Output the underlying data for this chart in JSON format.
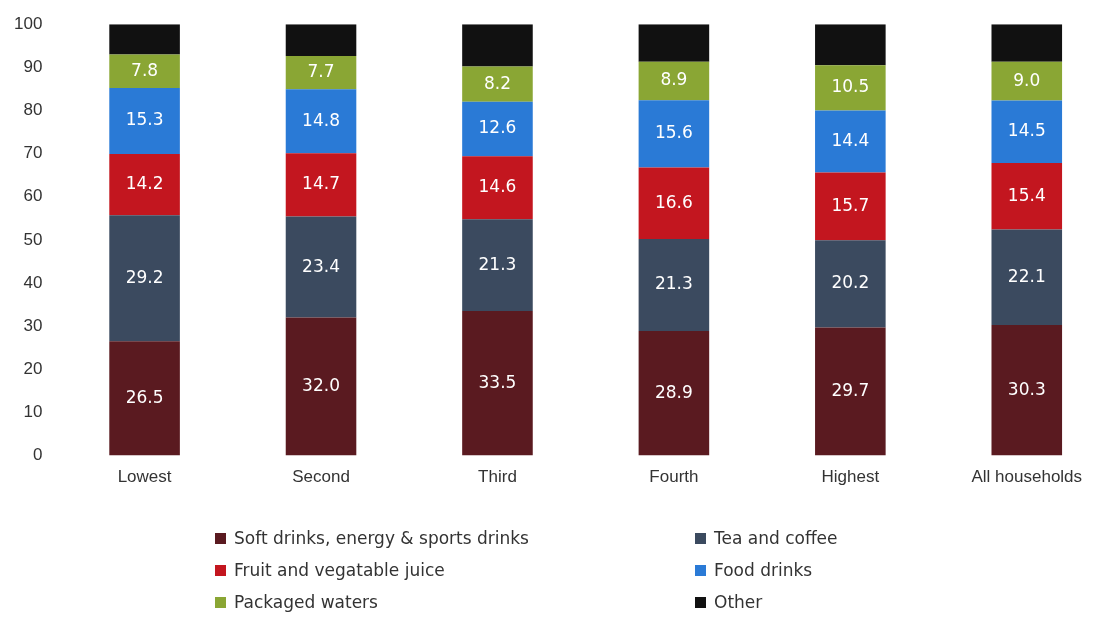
{
  "chart_data": {
    "type": "bar",
    "stacked": true,
    "categories": [
      "Lowest",
      "Second",
      "Third",
      "Fourth",
      "Highest",
      "All households"
    ],
    "series": [
      {
        "name": "Soft drinks, energy & sports drinks",
        "color": "#5a1a20",
        "values": [
          26.5,
          32.0,
          33.5,
          28.9,
          29.7,
          30.3
        ],
        "value_labels": [
          "26.5",
          "32.0",
          "33.5",
          "28.9",
          "29.7",
          "30.3"
        ]
      },
      {
        "name": "Tea and coffee",
        "color": "#3b4a5f",
        "values": [
          29.2,
          23.4,
          21.3,
          21.3,
          20.2,
          22.1
        ],
        "value_labels": [
          "29.2",
          "23.4",
          "21.3",
          "21.3",
          "20.2",
          "22.1"
        ]
      },
      {
        "name": "Fruit and vegatable juice",
        "color": "#c3161f",
        "values": [
          14.2,
          14.7,
          14.6,
          16.6,
          15.7,
          15.4
        ],
        "value_labels": [
          "14.2",
          "14.7",
          "14.6",
          "16.6",
          "15.7",
          "15.4"
        ]
      },
      {
        "name": "Food drinks",
        "color": "#2a7ad6",
        "values": [
          15.3,
          14.8,
          12.6,
          15.6,
          14.4,
          14.5
        ],
        "value_labels": [
          "15.3",
          "14.8",
          "12.6",
          "15.6",
          "14.4",
          "14.5"
        ]
      },
      {
        "name": "Packaged waters",
        "color": "#8aa634",
        "values": [
          7.8,
          7.7,
          8.2,
          8.9,
          10.5,
          9.0
        ],
        "value_labels": [
          "7.8",
          "7.7",
          "8.2",
          "8.9",
          "10.5",
          "9.0"
        ]
      },
      {
        "name": "Other",
        "color": "#111111",
        "values": [
          7.0,
          7.4,
          9.8,
          8.7,
          9.5,
          8.7
        ]
      }
    ],
    "ylim": [
      0,
      100
    ],
    "yticks": [
      0,
      10,
      20,
      30,
      40,
      50,
      60,
      70,
      80,
      90,
      100
    ],
    "grid": false,
    "legend": "bottom"
  }
}
